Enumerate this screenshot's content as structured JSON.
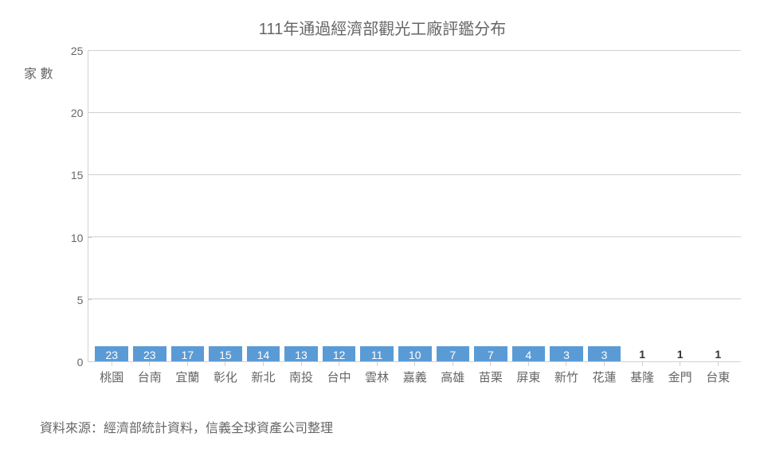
{
  "chart": {
    "type": "bar",
    "title": "111年通過經濟部觀光工廠評鑑分布",
    "y_axis_label": "家\n數",
    "categories": [
      "桃園",
      "台南",
      "宜蘭",
      "彰化",
      "新北",
      "南投",
      "台中",
      "雲林",
      "嘉義",
      "高雄",
      "苗栗",
      "屏東",
      "新竹",
      "花蓮",
      "基隆",
      "金門",
      "台東"
    ],
    "values": [
      23,
      23,
      17,
      15,
      14,
      13,
      12,
      11,
      10,
      7,
      7,
      4,
      3,
      3,
      1,
      1,
      1
    ],
    "bar_color": "#5b9bd5",
    "title_color": "#666666",
    "title_fontsize": 20,
    "label_color": "#666666",
    "label_inside_color": "#ffffff",
    "label_outside_color": "#333333",
    "label_fontsize": 14,
    "xlabel_fontsize": 15,
    "background_color": "#ffffff",
    "grid_color": "#d0d0d0",
    "axis_color": "#d0d0d0",
    "ylim": [
      0,
      25
    ],
    "ytick_step": 5,
    "yticks": [
      0,
      5,
      10,
      15,
      20,
      25
    ],
    "outside_label_threshold": 1,
    "bar_width": 0.7
  },
  "source": "資料來源：經濟部統計資料，信義全球資產公司整理"
}
